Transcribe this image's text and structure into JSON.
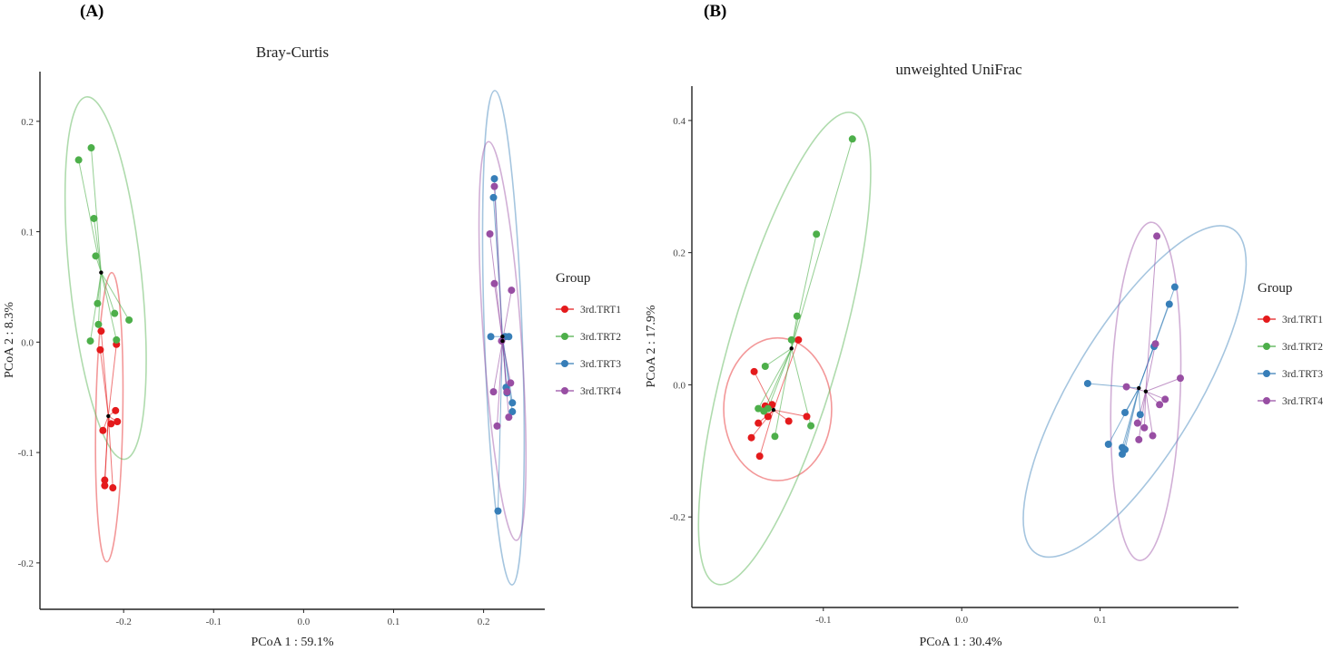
{
  "figure": {
    "panels": [
      {
        "letter": "(A)",
        "title": "Bray-Curtis",
        "xlabel": "PCoA 1 : 59.1%",
        "ylabel": "PCoA 2 : 8.3%",
        "xticks": [
          "-0.2",
          "-0.1",
          "0.0",
          "0.1",
          "0.2"
        ],
        "yticks": [
          "0.2",
          "0.1",
          "0.0",
          "-0.1",
          "-0.2"
        ],
        "legend_title": "Group",
        "legend_items": [
          "3rd.TRT1",
          "3rd.TRT2",
          "3rd.TRT3",
          "3rd.TRT4"
        ]
      },
      {
        "letter": "(B)",
        "title": "unweighted UniFrac",
        "xlabel": "PCoA 1 : 30.4%",
        "ylabel": "PCoA 2 : 17.9%",
        "xticks": [
          "-0.1",
          "0.0",
          "0.1"
        ],
        "yticks": [
          "0.4",
          "0.2",
          "0.0",
          "-0.2"
        ],
        "legend_title": "Group",
        "legend_items": [
          "3rd.TRT1",
          "3rd.TRT2",
          "3rd.TRT3",
          "3rd.TRT4"
        ]
      }
    ]
  },
  "colors": {
    "3rd.TRT1": "#e41a1c",
    "3rd.TRT2": "#4daf4a",
    "3rd.TRT3": "#377eb8",
    "3rd.TRT4": "#984ea3",
    "centroid": "#000000"
  },
  "chart_data": [
    {
      "type": "scatter",
      "title": "Bray-Curtis",
      "xlabel": "PCoA 1 : 59.1%",
      "ylabel": "PCoA 2 : 8.3%",
      "xlim": [
        -0.293,
        0.268
      ],
      "ylim": [
        -0.242,
        0.245
      ],
      "ellipses": true,
      "spider_lines": true,
      "grid": false,
      "legend_position": "right",
      "series": [
        {
          "name": "3rd.TRT1",
          "centroid": [
            -0.217,
            -0.067
          ],
          "ellipse": {
            "cx": -0.216,
            "cy": -0.068,
            "rx": 0.015,
            "ry": 0.131,
            "angle": 1
          },
          "points": [
            [
              -0.225,
              0.01
            ],
            [
              -0.226,
              -0.007
            ],
            [
              -0.208,
              -0.002
            ],
            [
              -0.214,
              -0.074
            ],
            [
              -0.209,
              -0.062
            ],
            [
              -0.207,
              -0.072
            ],
            [
              -0.223,
              -0.08
            ],
            [
              -0.221,
              -0.125
            ],
            [
              -0.221,
              -0.13
            ],
            [
              -0.212,
              -0.132
            ]
          ]
        },
        {
          "name": "3rd.TRT2",
          "centroid": [
            -0.225,
            0.063
          ],
          "ellipse": {
            "cx": -0.22,
            "cy": 0.058,
            "rx": 0.04,
            "ry": 0.165,
            "angle": -6
          },
          "points": [
            [
              -0.25,
              0.165
            ],
            [
              -0.236,
              0.176
            ],
            [
              -0.233,
              0.112
            ],
            [
              -0.231,
              0.078
            ],
            [
              -0.229,
              0.035
            ],
            [
              -0.228,
              0.016
            ],
            [
              -0.237,
              0.001
            ],
            [
              -0.21,
              0.026
            ],
            [
              -0.208,
              0.002
            ],
            [
              -0.194,
              0.02
            ]
          ]
        },
        {
          "name": "3rd.TRT3",
          "centroid": [
            0.221,
            0.005
          ],
          "ellipse": {
            "cx": 0.222,
            "cy": 0.004,
            "rx": 0.021,
            "ry": 0.224,
            "angle": -2
          },
          "points": [
            [
              0.212,
              0.148
            ],
            [
              0.211,
              0.131
            ],
            [
              0.208,
              0.005
            ],
            [
              0.224,
              0.005
            ],
            [
              0.228,
              0.005
            ],
            [
              0.225,
              -0.041
            ],
            [
              0.226,
              -0.046
            ],
            [
              0.232,
              -0.055
            ],
            [
              0.232,
              -0.063
            ],
            [
              0.216,
              -0.153
            ]
          ]
        },
        {
          "name": "3rd.TRT4",
          "centroid": [
            0.221,
            0.001
          ],
          "ellipse": {
            "cx": 0.221,
            "cy": 0.001,
            "rx": 0.021,
            "ry": 0.181,
            "angle": -4
          },
          "points": [
            [
              0.212,
              0.141
            ],
            [
              0.207,
              0.098
            ],
            [
              0.212,
              0.053
            ],
            [
              0.231,
              0.047
            ],
            [
              0.22,
              0.001
            ],
            [
              0.23,
              -0.037
            ],
            [
              0.211,
              -0.045
            ],
            [
              0.226,
              -0.045
            ],
            [
              0.228,
              -0.068
            ],
            [
              0.215,
              -0.076
            ]
          ]
        }
      ]
    },
    {
      "type": "scatter",
      "title": "unweighted UniFrac",
      "xlabel": "PCoA 1 : 30.4%",
      "ylabel": "PCoA 2 : 17.9%",
      "xlim": [
        -0.195,
        0.2
      ],
      "ylim": [
        -0.337,
        0.452
      ],
      "ellipses": true,
      "spider_lines": true,
      "grid": false,
      "legend_position": "right",
      "series": [
        {
          "name": "3rd.TRT1",
          "centroid": [
            -0.136,
            -0.038
          ],
          "ellipse": {
            "cx": -0.133,
            "cy": -0.037,
            "rx": 0.039,
            "ry": 0.108,
            "angle": 0
          },
          "points": [
            [
              -0.118,
              0.068
            ],
            [
              -0.15,
              0.02
            ],
            [
              -0.142,
              -0.032
            ],
            [
              -0.137,
              -0.03
            ],
            [
              -0.14,
              -0.048
            ],
            [
              -0.147,
              -0.058
            ],
            [
              -0.125,
              -0.055
            ],
            [
              -0.112,
              -0.048
            ],
            [
              -0.152,
              -0.08
            ],
            [
              -0.146,
              -0.108
            ]
          ]
        },
        {
          "name": "3rd.TRT2",
          "centroid": [
            -0.123,
            0.055
          ],
          "ellipse": {
            "cx": -0.128,
            "cy": 0.055,
            "rx": 0.04,
            "ry": 0.371,
            "angle": 16
          },
          "points": [
            [
              -0.079,
              0.372
            ],
            [
              -0.105,
              0.228
            ],
            [
              -0.119,
              0.104
            ],
            [
              -0.123,
              0.068
            ],
            [
              -0.142,
              0.028
            ],
            [
              -0.147,
              -0.036
            ],
            [
              -0.143,
              -0.04
            ],
            [
              -0.14,
              -0.036
            ],
            [
              -0.135,
              -0.078
            ],
            [
              -0.109,
              -0.062
            ]
          ]
        },
        {
          "name": "3rd.TRT3",
          "centroid": [
            0.128,
            -0.005
          ],
          "ellipse": {
            "cx": 0.125,
            "cy": -0.01,
            "rx": 0.045,
            "ry": 0.287,
            "angle": 31
          },
          "points": [
            [
              0.154,
              0.148
            ],
            [
              0.15,
              0.122
            ],
            [
              0.139,
              0.058
            ],
            [
              0.091,
              0.002
            ],
            [
              0.118,
              -0.042
            ],
            [
              0.129,
              -0.045
            ],
            [
              0.106,
              -0.09
            ],
            [
              0.116,
              -0.095
            ],
            [
              0.118,
              -0.098
            ],
            [
              0.116,
              -0.105
            ]
          ]
        },
        {
          "name": "3rd.TRT4",
          "centroid": [
            0.133,
            -0.01
          ],
          "ellipse": {
            "cx": 0.133,
            "cy": -0.01,
            "rx": 0.025,
            "ry": 0.256,
            "angle": 2
          },
          "points": [
            [
              0.141,
              0.225
            ],
            [
              0.14,
              0.062
            ],
            [
              0.119,
              -0.003
            ],
            [
              0.158,
              0.01
            ],
            [
              0.147,
              -0.022
            ],
            [
              0.143,
              -0.03
            ],
            [
              0.127,
              -0.058
            ],
            [
              0.132,
              -0.065
            ],
            [
              0.138,
              -0.077
            ],
            [
              0.128,
              -0.083
            ]
          ]
        }
      ]
    }
  ]
}
